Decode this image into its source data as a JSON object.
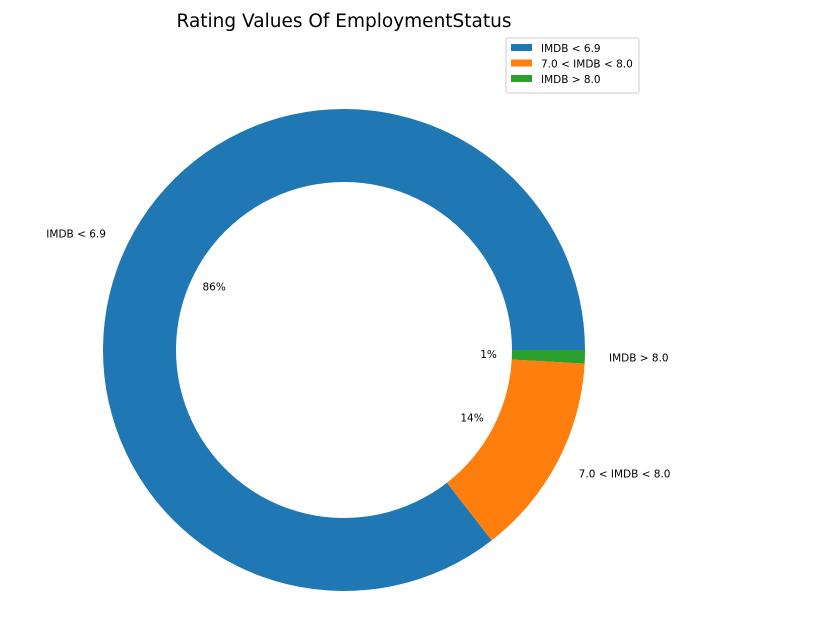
{
  "chart_data": {
    "type": "pie",
    "title": "Rating Values Of EmploymentStatus",
    "donut": true,
    "legend_position": "top-right",
    "slices": [
      {
        "label": "IMDB < 6.9",
        "value": 85.5,
        "pct_label": "86%",
        "color": "#1f77b4"
      },
      {
        "label": "7.0 < IMDB < 8.0",
        "value": 13.6,
        "pct_label": "14%",
        "color": "#ff7f0e"
      },
      {
        "label": "IMDB > 8.0",
        "value": 0.9,
        "pct_label": "1%",
        "color": "#2ca02c"
      }
    ]
  }
}
